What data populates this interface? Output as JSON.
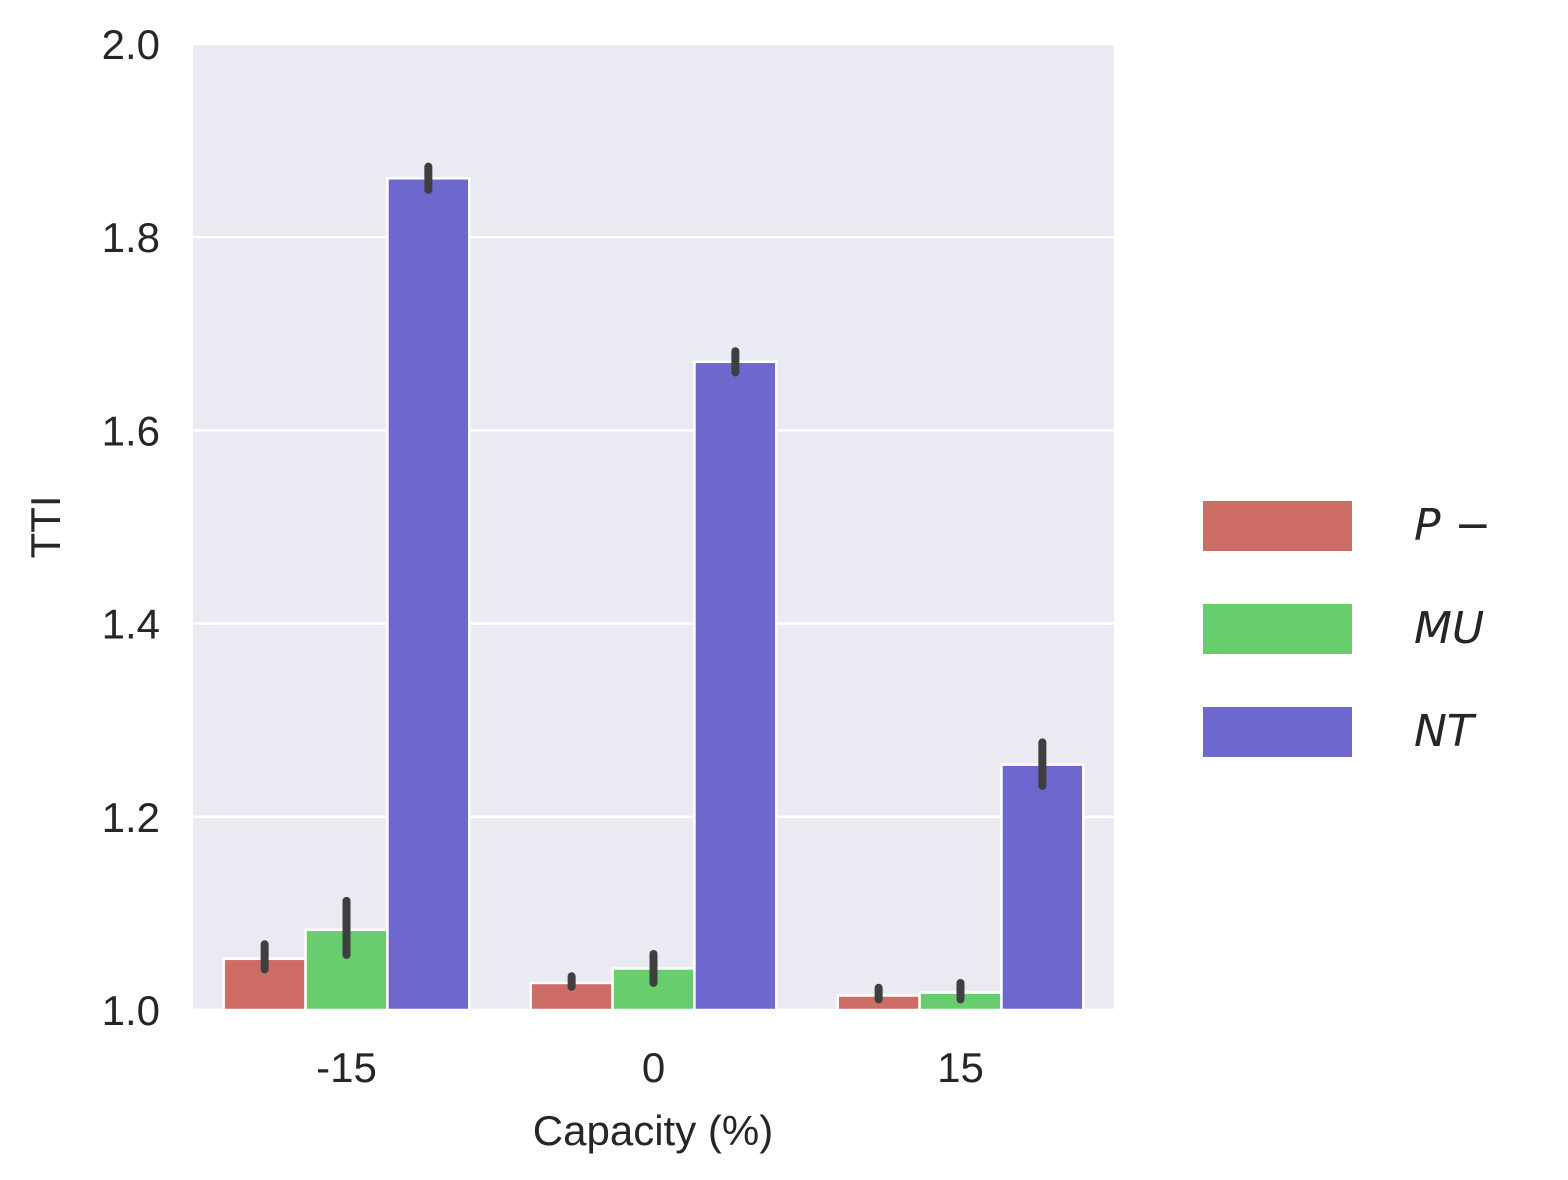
{
  "chart_data": {
    "type": "bar",
    "title": "",
    "xlabel": "Capacity (%)",
    "ylabel": "TTI",
    "categories": [
      "-15",
      "0",
      "15"
    ],
    "ylim": [
      1.0,
      2.0
    ],
    "yticks": [
      "1.0",
      "1.2",
      "1.4",
      "1.6",
      "1.8",
      "2.0"
    ],
    "grid": true,
    "legend_position": "right",
    "background": "#eaeaf2",
    "series": [
      {
        "name": "P-",
        "label": "P −",
        "color": "#cd6d66",
        "values": [
          1.053,
          1.028,
          1.015
        ],
        "err_low": [
          1.042,
          1.024,
          1.011
        ],
        "err_high": [
          1.068,
          1.035,
          1.023
        ]
      },
      {
        "name": "MU",
        "label": "MU",
        "color": "#67cd6d",
        "values": [
          1.083,
          1.043,
          1.018
        ],
        "err_low": [
          1.057,
          1.028,
          1.011
        ],
        "err_high": [
          1.113,
          1.058,
          1.028
        ]
      },
      {
        "name": "NT",
        "label": "NT",
        "color": "#6e67cd",
        "values": [
          1.861,
          1.671,
          1.254
        ],
        "err_low": [
          1.849,
          1.66,
          1.232
        ],
        "err_high": [
          1.873,
          1.682,
          1.277
        ]
      }
    ]
  }
}
